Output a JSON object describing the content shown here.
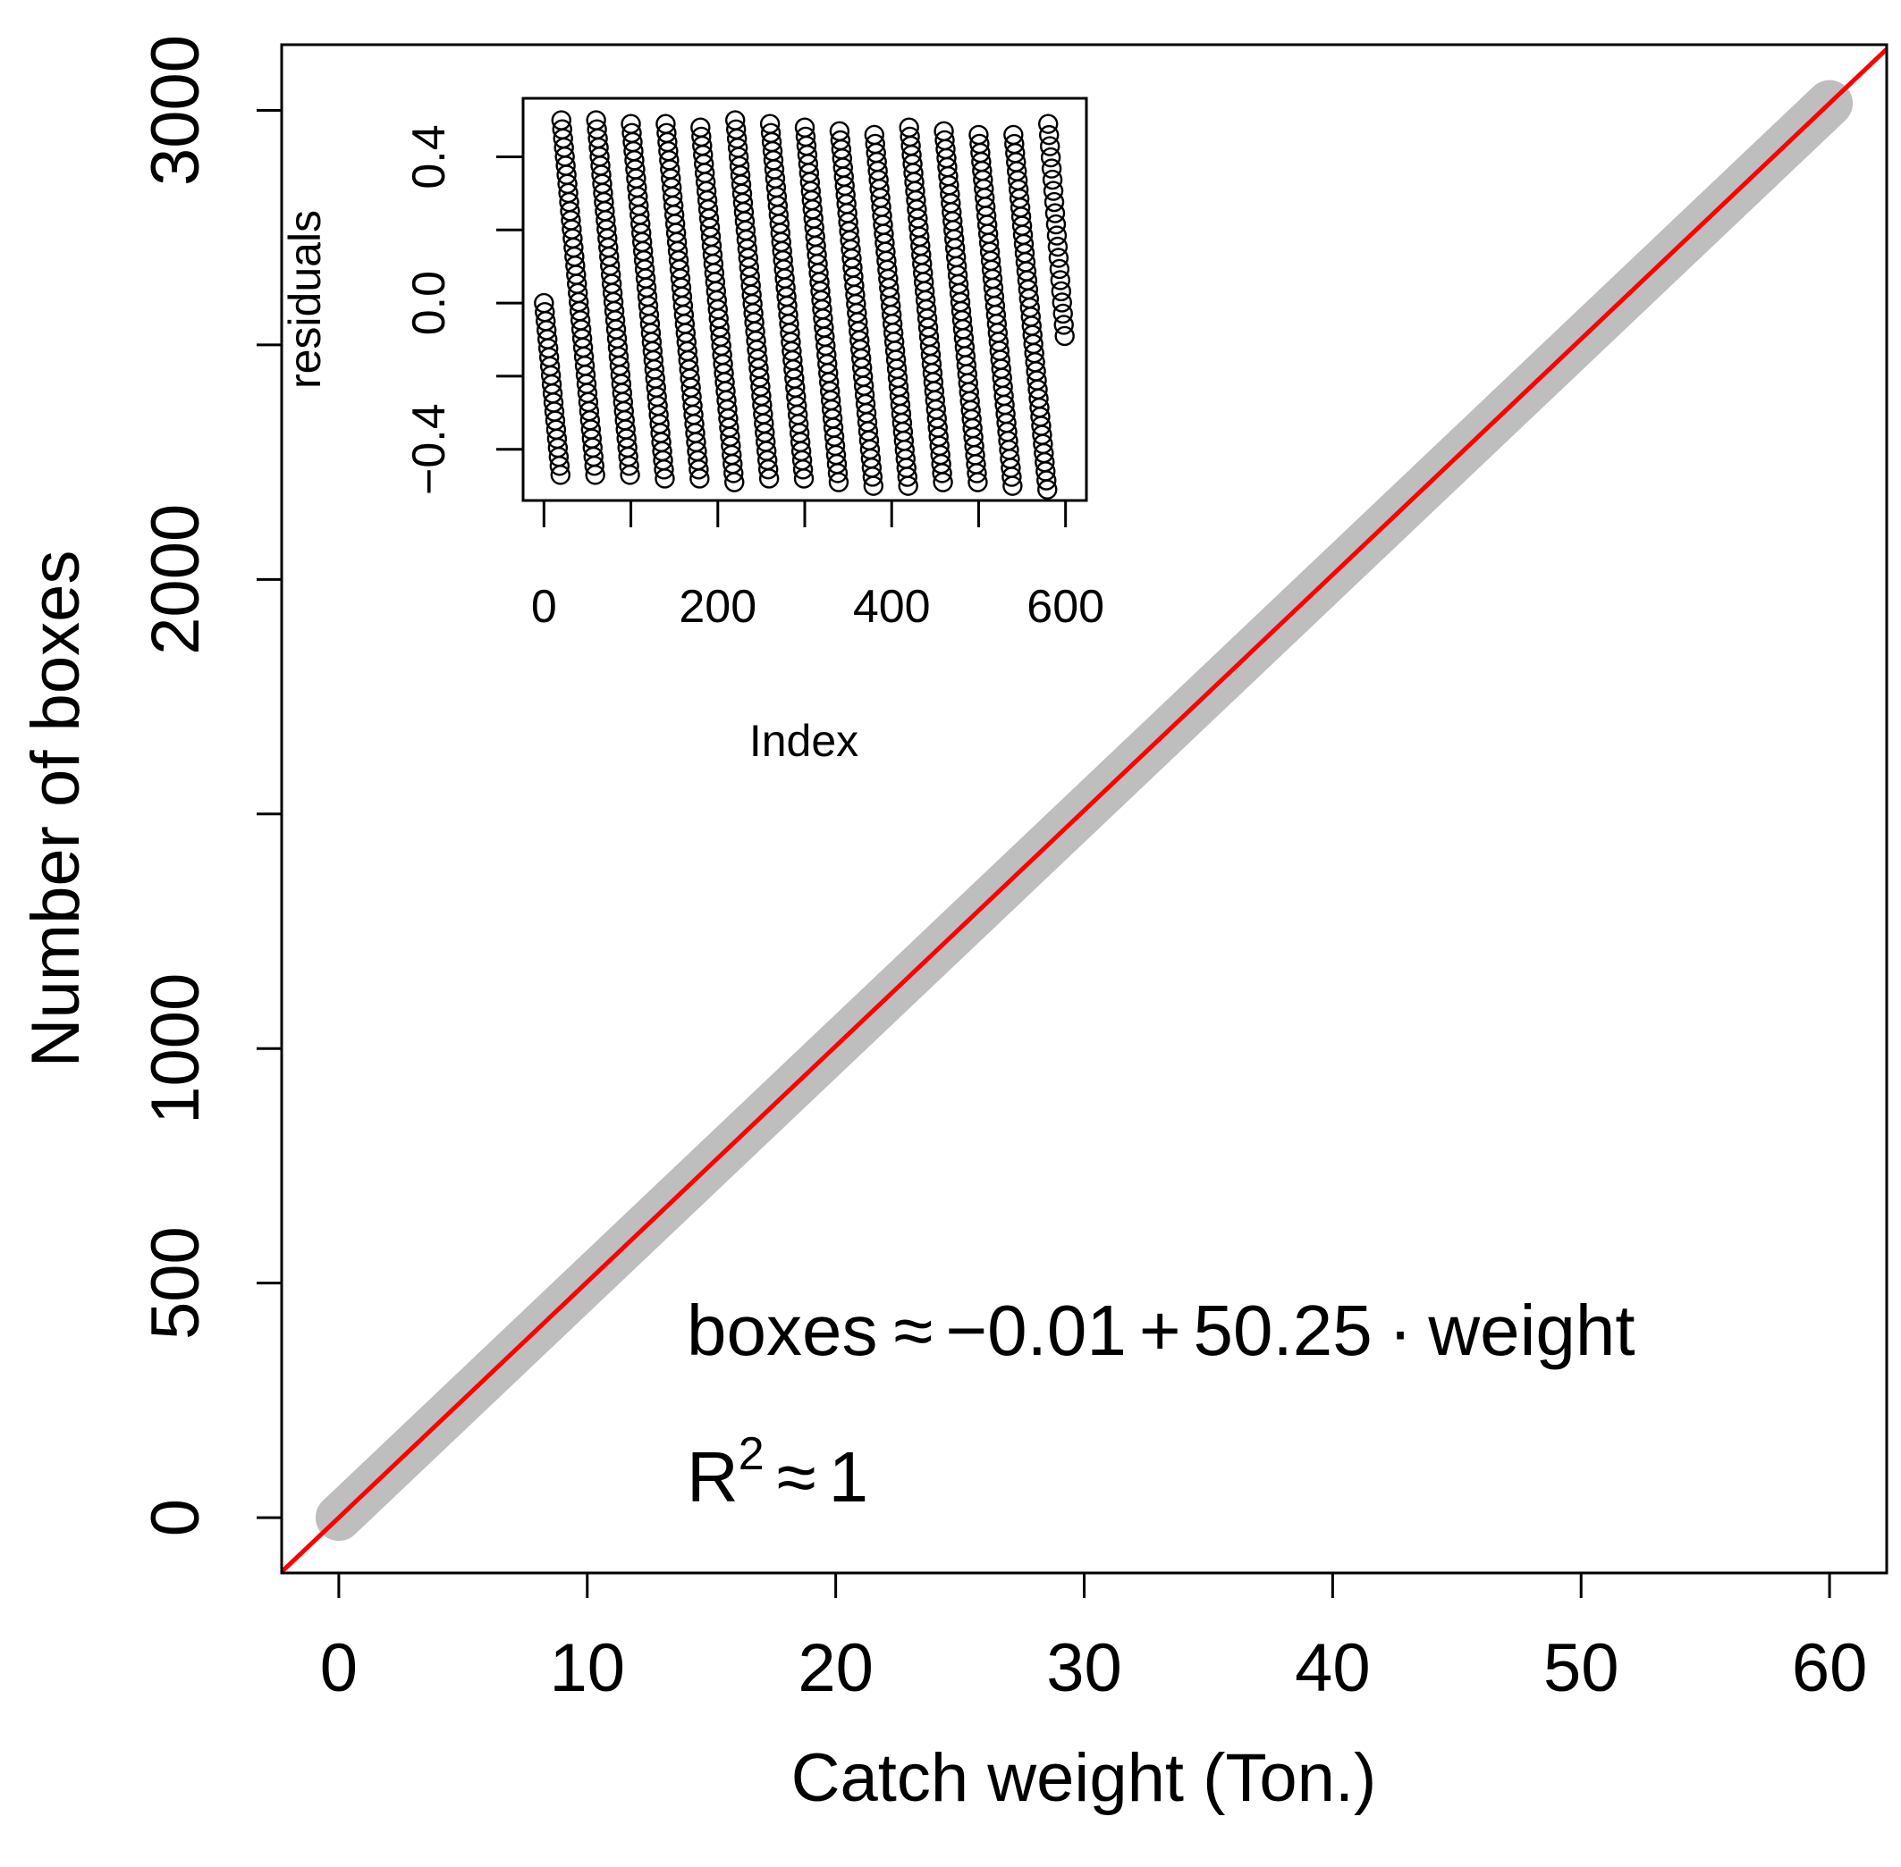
{
  "chart_data": [
    {
      "type": "scatter",
      "xlabel": "Catch weight (Ton.)",
      "ylabel": "Number of boxes",
      "xlim": [
        -2.3,
        62.3
      ],
      "ylim": [
        -118,
        3140
      ],
      "x_ticks": [
        0,
        10,
        20,
        30,
        40,
        50,
        60
      ],
      "y_ticks": [
        0,
        500,
        1000,
        1500,
        2000,
        2500,
        3000
      ],
      "y_tick_labels": [
        "0",
        "500",
        "1000",
        "",
        "2000",
        "",
        "3000"
      ],
      "points": {
        "x_start": 0,
        "x_end": 60,
        "n": 600,
        "slope": 50.25,
        "intercept": -0.01,
        "color": "#bebebe"
      },
      "fit_line": {
        "intercept": -0.01,
        "slope": 50.25,
        "color": "#ff0000"
      },
      "annotation": {
        "equation_lhs": "boxes",
        "approx": "≈",
        "equation_rhs_1": "−0.01",
        "plus": "+",
        "coef": "50.25",
        "dot": "·",
        "var": "weight",
        "r2_base": "R",
        "r2_exp": "2",
        "r2_value": "1"
      },
      "grid": false
    },
    {
      "type": "scatter",
      "title": "",
      "xlabel": "Index",
      "ylabel": "residuals",
      "xlim": [
        -24,
        624
      ],
      "ylim": [
        -0.54,
        0.56
      ],
      "x_ticks": [
        0,
        100,
        200,
        300,
        400,
        500,
        600
      ],
      "x_tick_labels": [
        "0",
        "",
        "200",
        "",
        "400",
        "",
        "600"
      ],
      "y_ticks": [
        -0.4,
        -0.2,
        0.0,
        0.2,
        0.4
      ],
      "y_tick_labels": [
        "−0.4",
        "",
        "0.0",
        "",
        "0.4"
      ],
      "n": 600,
      "pattern": "sawtooth residuals: each ~40-point run falls from about +0.50 to about -0.49, first run 0 to -0.47, last run 0.49 to -0.09",
      "marker": "open-circle"
    }
  ]
}
